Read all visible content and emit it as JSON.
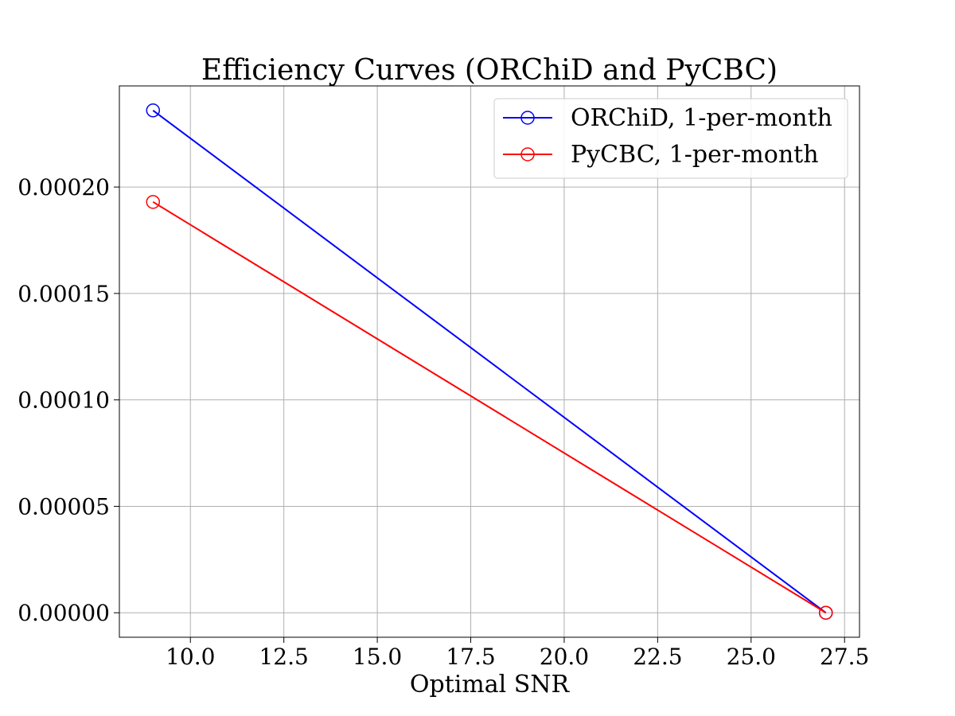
{
  "chart_data": {
    "type": "line",
    "title": "Efficiency Curves (ORChiD and PyCBC)",
    "xlabel": "Optimal SNR",
    "ylabel": "",
    "xlim": [
      8.1,
      27.9
    ],
    "ylim": [
      -1.15e-05,
      0.0002475
    ],
    "x_ticks": [
      10.0,
      12.5,
      15.0,
      17.5,
      20.0,
      22.5,
      25.0,
      27.5
    ],
    "x_tick_labels": [
      "10.0",
      "12.5",
      "15.0",
      "17.5",
      "20.0",
      "22.5",
      "25.0",
      "27.5"
    ],
    "y_ticks": [
      0.0,
      5e-05,
      0.0001,
      0.00015,
      0.0002
    ],
    "y_tick_labels": [
      "0.00000",
      "0.00005",
      "0.00010",
      "0.00015",
      "0.00020"
    ],
    "grid": true,
    "legend_position": "top-right",
    "series": [
      {
        "name": "ORChiD, 1-per-month",
        "color": "#0000ff",
        "marker": "open-circle",
        "x": [
          9.0,
          27.0
        ],
        "y": [
          0.000236,
          0.0
        ]
      },
      {
        "name": "PyCBC, 1-per-month",
        "color": "#ff0000",
        "marker": "open-circle",
        "x": [
          9.0,
          27.0
        ],
        "y": [
          0.000193,
          0.0
        ]
      }
    ]
  }
}
